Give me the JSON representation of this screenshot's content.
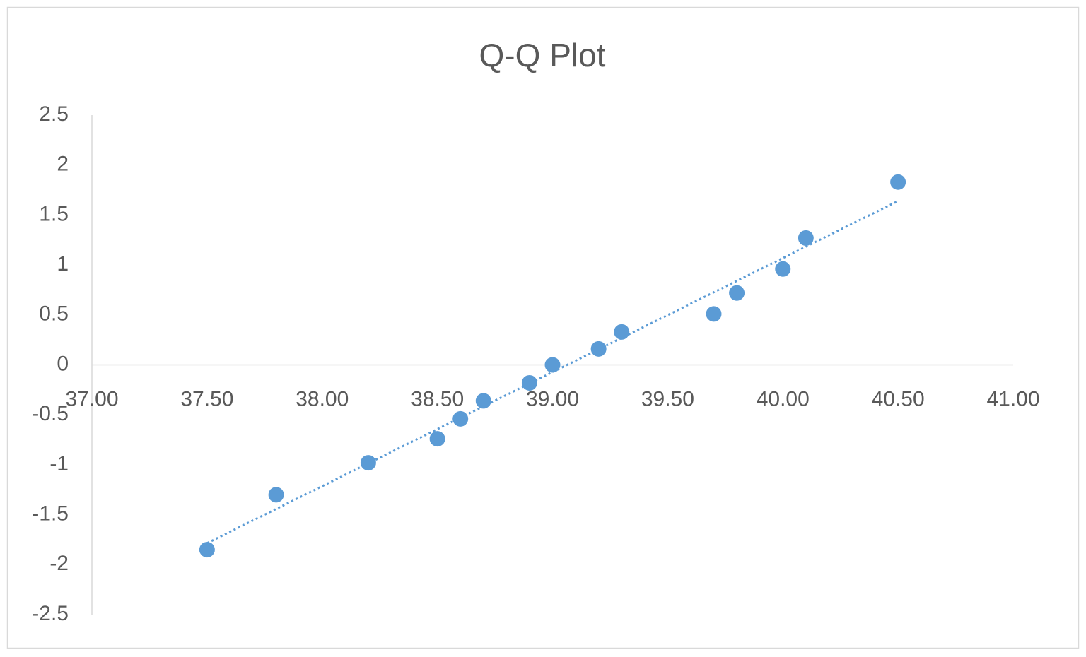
{
  "chart_data": {
    "type": "scatter",
    "title": "Q-Q Plot",
    "x": [
      37.5,
      37.8,
      38.2,
      38.5,
      38.6,
      38.7,
      38.9,
      39.0,
      39.2,
      39.3,
      39.7,
      39.8,
      40.0,
      40.1,
      40.5
    ],
    "values": [
      -1.85,
      -1.3,
      -0.98,
      -0.74,
      -0.54,
      -0.36,
      -0.18,
      0.0,
      0.16,
      0.33,
      0.51,
      0.72,
      0.96,
      1.27,
      1.83
    ],
    "color": "#5b9bd5",
    "trendline": "linear",
    "xlim": [
      37,
      41
    ],
    "xticks": [
      {
        "value": 37,
        "label": "37.00"
      },
      {
        "value": 37.5,
        "label": "37.50"
      },
      {
        "value": 38,
        "label": "38.00"
      },
      {
        "value": 38.5,
        "label": "38.50"
      },
      {
        "value": 39,
        "label": "39.00"
      },
      {
        "value": 39.5,
        "label": "39.50"
      },
      {
        "value": 40,
        "label": "40.00"
      },
      {
        "value": 40.5,
        "label": "40.50"
      },
      {
        "value": 41,
        "label": "41.00"
      }
    ],
    "ylim": [
      -2.5,
      2.5
    ],
    "yticks": [
      2.5,
      2,
      1.5,
      1,
      0.5,
      0,
      -0.5,
      -1,
      -1.5,
      -2,
      -2.5
    ],
    "grid": false
  }
}
